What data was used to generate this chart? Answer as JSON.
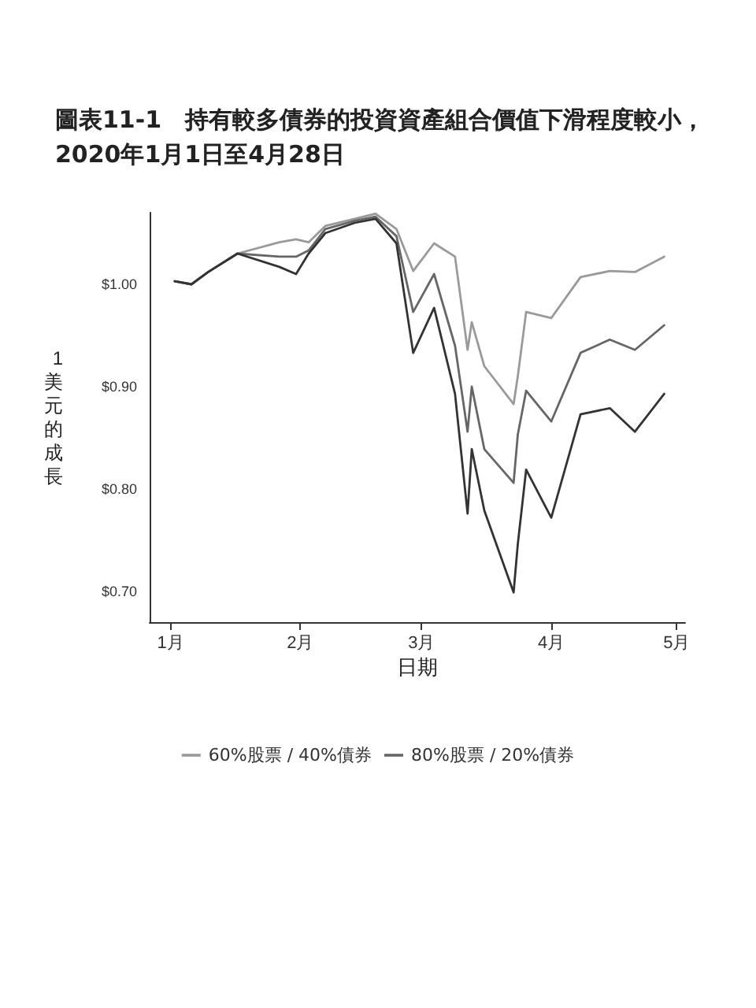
{
  "chart_data": {
    "type": "line",
    "title": "圖表11-1　持有較多債券的投資資產組合價值下滑程度較小，2020年1月1日至4月28日",
    "xlabel": "日期",
    "ylabel": "1美元的成長",
    "x": [
      "2020-01-02",
      "2020-01-06",
      "2020-01-10",
      "2020-01-17",
      "2020-01-27",
      "2020-01-31",
      "2020-02-03",
      "2020-02-07",
      "2020-02-14",
      "2020-02-19",
      "2020-02-24",
      "2020-02-28",
      "2020-03-04",
      "2020-03-09",
      "2020-03-12",
      "2020-03-13",
      "2020-03-16",
      "2020-03-23",
      "2020-03-24",
      "2020-03-26",
      "2020-04-01",
      "2020-04-08",
      "2020-04-15",
      "2020-04-21",
      "2020-04-28"
    ],
    "series": [
      {
        "name": "60%股票 / 40%債券",
        "color": "#9a9a9a",
        "values": [
          1.003,
          1.0,
          1.012,
          1.03,
          1.041,
          1.044,
          1.041,
          1.057,
          1.064,
          1.069,
          1.054,
          1.013,
          1.04,
          1.027,
          0.936,
          0.963,
          0.92,
          0.883,
          0.91,
          0.973,
          0.967,
          1.007,
          1.013,
          1.012,
          1.027
        ]
      },
      {
        "name": "80%股票 / 20%債券",
        "color": "#666666",
        "values": [
          1.003,
          1.0,
          1.012,
          1.03,
          1.027,
          1.027,
          1.033,
          1.054,
          1.062,
          1.066,
          1.047,
          0.973,
          1.01,
          0.94,
          0.856,
          0.9,
          0.839,
          0.806,
          0.853,
          0.896,
          0.866,
          0.933,
          0.946,
          0.936,
          0.96
        ]
      },
      {
        "color": "#333333",
        "values": [
          1.003,
          1.0,
          1.012,
          1.03,
          1.017,
          1.01,
          1.03,
          1.05,
          1.06,
          1.064,
          1.04,
          0.933,
          0.977,
          0.893,
          0.776,
          0.839,
          0.779,
          0.699,
          0.746,
          0.819,
          0.772,
          0.873,
          0.879,
          0.856,
          0.893
        ]
      }
    ],
    "xlim": [
      "2019-12-27",
      "2020-05-03"
    ],
    "xticks": [
      {
        "value": "2020-01-01",
        "label": "1月"
      },
      {
        "value": "2020-02-01",
        "label": "2月"
      },
      {
        "value": "2020-03-01",
        "label": "3月"
      },
      {
        "value": "2020-04-01",
        "label": "4月"
      },
      {
        "value": "2020-05-01",
        "label": "5月"
      }
    ],
    "ylim": [
      0.67,
      1.07
    ],
    "yticks": [
      {
        "value": 0.7,
        "label": "$0.70"
      },
      {
        "value": 0.8,
        "label": "$0.80"
      },
      {
        "value": 0.9,
        "label": "$0.90"
      },
      {
        "value": 1,
        "label": "$1.00"
      }
    ],
    "grid": false,
    "legend": "bottom",
    "marker": "none",
    "line_style": "solid"
  }
}
